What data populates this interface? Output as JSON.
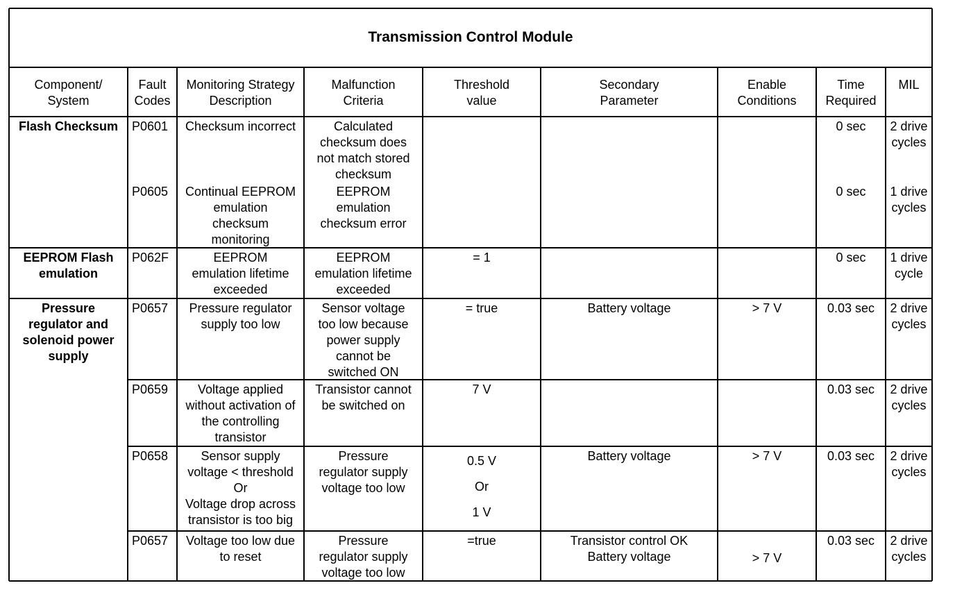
{
  "title": "Transmission Control Module",
  "header": [
    [
      "Component/",
      "System"
    ],
    [
      "Fault",
      "Codes"
    ],
    [
      "Monitoring Strategy",
      "Description"
    ],
    [
      "Malfunction",
      "Criteria"
    ],
    [
      "Threshold",
      "value"
    ],
    [
      "Secondary",
      "Parameter"
    ],
    [
      "Enable",
      "Conditions"
    ],
    [
      "Time",
      "Required"
    ],
    [
      "MIL"
    ]
  ],
  "groups": [
    {
      "component": [
        "Flash Checksum"
      ],
      "rows": [
        {
          "fault_code": [
            "P0601"
          ],
          "strategy": [
            "Checksum incorrect"
          ],
          "malfunction": [
            "Calculated",
            "checksum does",
            "not match stored",
            "checksum"
          ],
          "time": [
            "0 sec"
          ],
          "mil": [
            "2 drive",
            "cycles"
          ]
        },
        {
          "fault_code": [
            "P0605"
          ],
          "strategy": [
            "Continual EEPROM",
            "emulation",
            "checksum",
            "monitoring"
          ],
          "malfunction": [
            "EEPROM",
            "emulation",
            "checksum error"
          ],
          "time": [
            "0 sec"
          ],
          "mil": [
            "1 drive",
            "cycles"
          ]
        }
      ]
    },
    {
      "component": [
        "EEPROM Flash",
        "emulation"
      ],
      "rows": [
        {
          "fault_code": [
            "P062F"
          ],
          "strategy": [
            "EEPROM",
            "emulation lifetime",
            "exceeded"
          ],
          "malfunction": [
            "EEPROM",
            "emulation lifetime",
            "exceeded"
          ],
          "threshold": [
            "= 1"
          ],
          "time": [
            "0 sec"
          ],
          "mil": [
            "1 drive",
            "cycle"
          ]
        }
      ]
    },
    {
      "component": [
        "Pressure",
        "regulator and",
        "solenoid power",
        "supply"
      ],
      "rows": [
        {
          "fault_code": [
            "P0657"
          ],
          "strategy": [
            "Pressure regulator",
            "supply too low"
          ],
          "malfunction": [
            "Sensor voltage",
            "too low because",
            "power supply",
            "cannot be",
            "switched ON"
          ],
          "threshold": [
            "= true"
          ],
          "secondary": [
            "Battery voltage"
          ],
          "enable": [
            "> 7 V"
          ],
          "time": [
            "0.03 sec"
          ],
          "mil": [
            "2 drive",
            "cycles"
          ]
        },
        {
          "fault_code": [
            "P0659"
          ],
          "strategy": [
            "Voltage applied",
            "without activation of",
            "the controlling",
            "transistor"
          ],
          "malfunction": [
            "Transistor cannot",
            "be switched on"
          ],
          "threshold": [
            "7 V"
          ],
          "time": [
            "0.03 sec"
          ],
          "mil": [
            "2 drive",
            "cycles"
          ]
        },
        {
          "fault_code": [
            "P0658"
          ],
          "strategy": [
            "Sensor supply",
            "voltage < threshold",
            "Or",
            "Voltage drop across",
            "transistor is too big"
          ],
          "malfunction": [
            "Pressure",
            "regulator supply",
            "voltage too low"
          ],
          "threshold": [
            "0.5 V",
            "Or",
            "1 V"
          ],
          "secondary": [
            "Battery voltage"
          ],
          "enable": [
            "> 7 V"
          ],
          "time": [
            "0.03 sec"
          ],
          "mil": [
            "2 drive",
            "cycles"
          ]
        },
        {
          "fault_code": [
            "P0657"
          ],
          "strategy": [
            "Voltage too low due",
            "to reset"
          ],
          "malfunction": [
            "Pressure",
            "regulator supply",
            "voltage too low"
          ],
          "threshold": [
            "=true"
          ],
          "secondary": [
            "Transistor control OK",
            "Battery voltage"
          ],
          "enable": [
            "> 7 V"
          ],
          "time": [
            "0.03 sec"
          ],
          "mil": [
            "2 drive",
            "cycles"
          ]
        }
      ]
    }
  ]
}
